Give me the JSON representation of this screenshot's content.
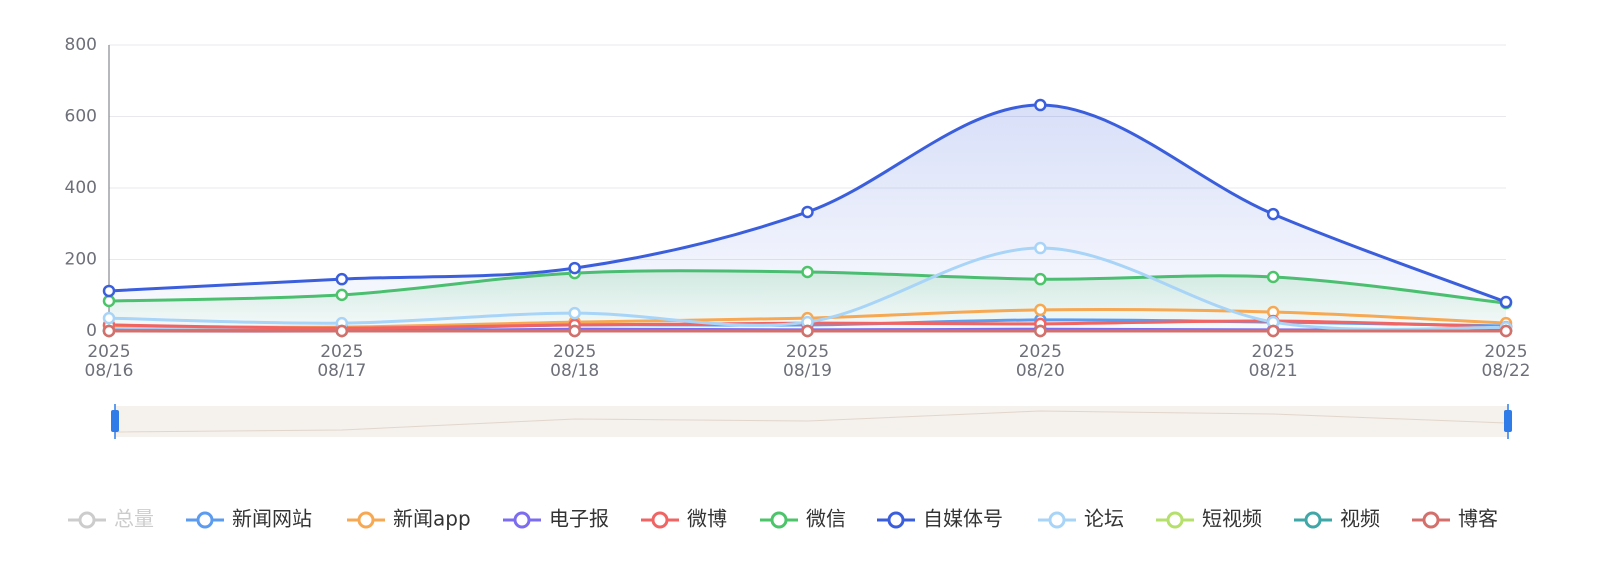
{
  "chart_data": {
    "type": "line",
    "categories": [
      "2025\n08/16",
      "2025\n08/17",
      "2025\n08/18",
      "2025\n08/19",
      "2025\n08/20",
      "2025\n08/21",
      "2025\n08/22"
    ],
    "ylim": [
      0,
      800
    ],
    "yticks": [
      0,
      200,
      400,
      600,
      800
    ],
    "grid": true,
    "smooth": true,
    "legend": "bottom",
    "series": [
      {
        "name": "总量",
        "color": "#cccccc",
        "hidden": true,
        "values": [
          null,
          null,
          null,
          null,
          null,
          null,
          null
        ]
      },
      {
        "name": "新闻网站",
        "color": "#5b9bf0",
        "values": [
          3,
          3,
          17,
          17,
          31,
          25,
          14
        ]
      },
      {
        "name": "新闻app",
        "color": "#f7a853",
        "values": [
          14,
          11,
          25,
          36,
          59,
          53,
          22
        ]
      },
      {
        "name": "电子报",
        "color": "#7b6cf0",
        "values": [
          0,
          0,
          5,
          3,
          5,
          3,
          2
        ]
      },
      {
        "name": "微博",
        "color": "#f06464",
        "values": [
          17,
          8,
          17,
          22,
          20,
          28,
          11
        ]
      },
      {
        "name": "微信",
        "color": "#4cc46a",
        "area": true,
        "values": [
          84,
          101,
          162,
          165,
          145,
          151,
          78
        ]
      },
      {
        "name": "自媒体号",
        "color": "#3b5fdc",
        "area": true,
        "values": [
          112,
          145,
          176,
          333,
          632,
          327,
          81
        ]
      },
      {
        "name": "论坛",
        "color": "#a8d4f8",
        "values": [
          36,
          22,
          50,
          25,
          232,
          25,
          10
        ]
      },
      {
        "name": "短视频",
        "color": "#b5e06b",
        "values": [
          0,
          0,
          0,
          0,
          0,
          0,
          0
        ]
      },
      {
        "name": "视频",
        "color": "#3fa7a7",
        "values": [
          0,
          0,
          0,
          0,
          0,
          0,
          0
        ]
      },
      {
        "name": "博客",
        "color": "#d4706c",
        "values": [
          0,
          0,
          0,
          0,
          0,
          0,
          0
        ]
      }
    ]
  }
}
